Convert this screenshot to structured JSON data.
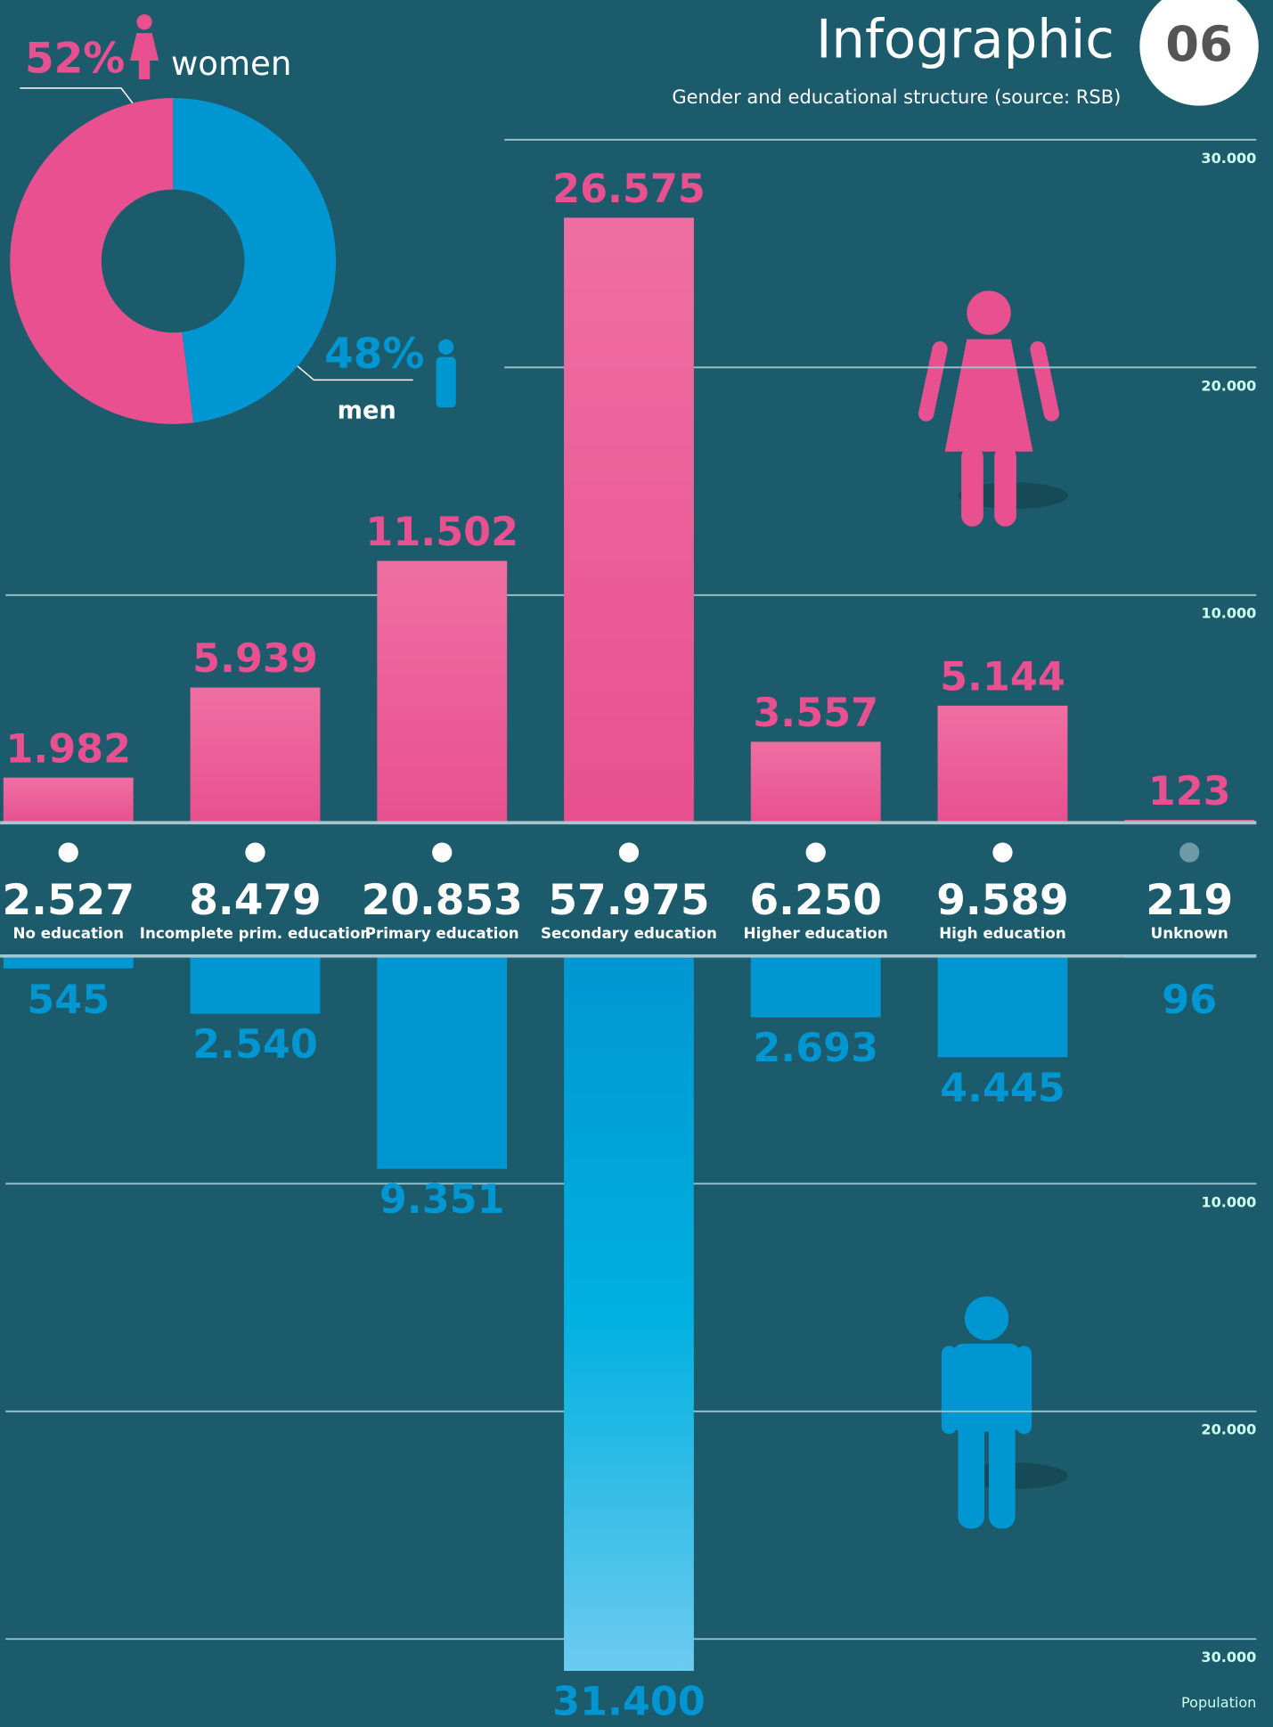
{
  "chart_data": [
    {
      "type": "pie",
      "categories": [
        "women",
        "men"
      ],
      "values": [
        52,
        48
      ],
      "value_labels": [
        "52%",
        "48%"
      ],
      "colors": [
        "#e8508f",
        "#0096d2"
      ]
    },
    {
      "type": "bar",
      "title": "Infographic",
      "badge": "06",
      "subtitle": "Gender and educational structure (source: RSB)",
      "categories": [
        "No education",
        "Incomplete prim. education",
        "Primary education",
        "Secondary education",
        "Higher education",
        "High education",
        "Unknown"
      ],
      "series": [
        {
          "color": "#e8508f",
          "axis": "y",
          "values": [
            1982,
            5939,
            11502,
            26575,
            3557,
            5144,
            123
          ],
          "value_labels": [
            "1.982",
            "5.939",
            "11.502",
            "26.575",
            "3.557",
            "5.144",
            "123"
          ]
        },
        {
          "color": "#0096d2",
          "axis": "y2",
          "values": [
            545,
            2540,
            9351,
            31400,
            2693,
            4445,
            96
          ],
          "value_labels": [
            "545",
            "2.540",
            "9.351",
            "31.400",
            "2.693",
            "4.445",
            "96"
          ]
        }
      ],
      "totals": {
        "values": [
          2527,
          8479,
          20853,
          57975,
          6250,
          9589,
          219
        ],
        "value_labels": [
          "2.527",
          "8.479",
          "20.853",
          "57.975",
          "6.250",
          "9.589",
          "219"
        ]
      },
      "ylim": [
        0,
        30000
      ],
      "yticks": [
        {
          "value": 10000,
          "label": "10.000"
        },
        {
          "value": 20000,
          "label": "20.000"
        },
        {
          "value": 30000,
          "label": "30.000"
        }
      ],
      "y2lim": [
        0,
        30000
      ],
      "y2ticks": [
        {
          "value": 10000,
          "label": "10.000"
        },
        {
          "value": 20000,
          "label": "20.000"
        },
        {
          "value": 30000,
          "label": "30.000"
        }
      ],
      "y_label": "Population"
    }
  ]
}
